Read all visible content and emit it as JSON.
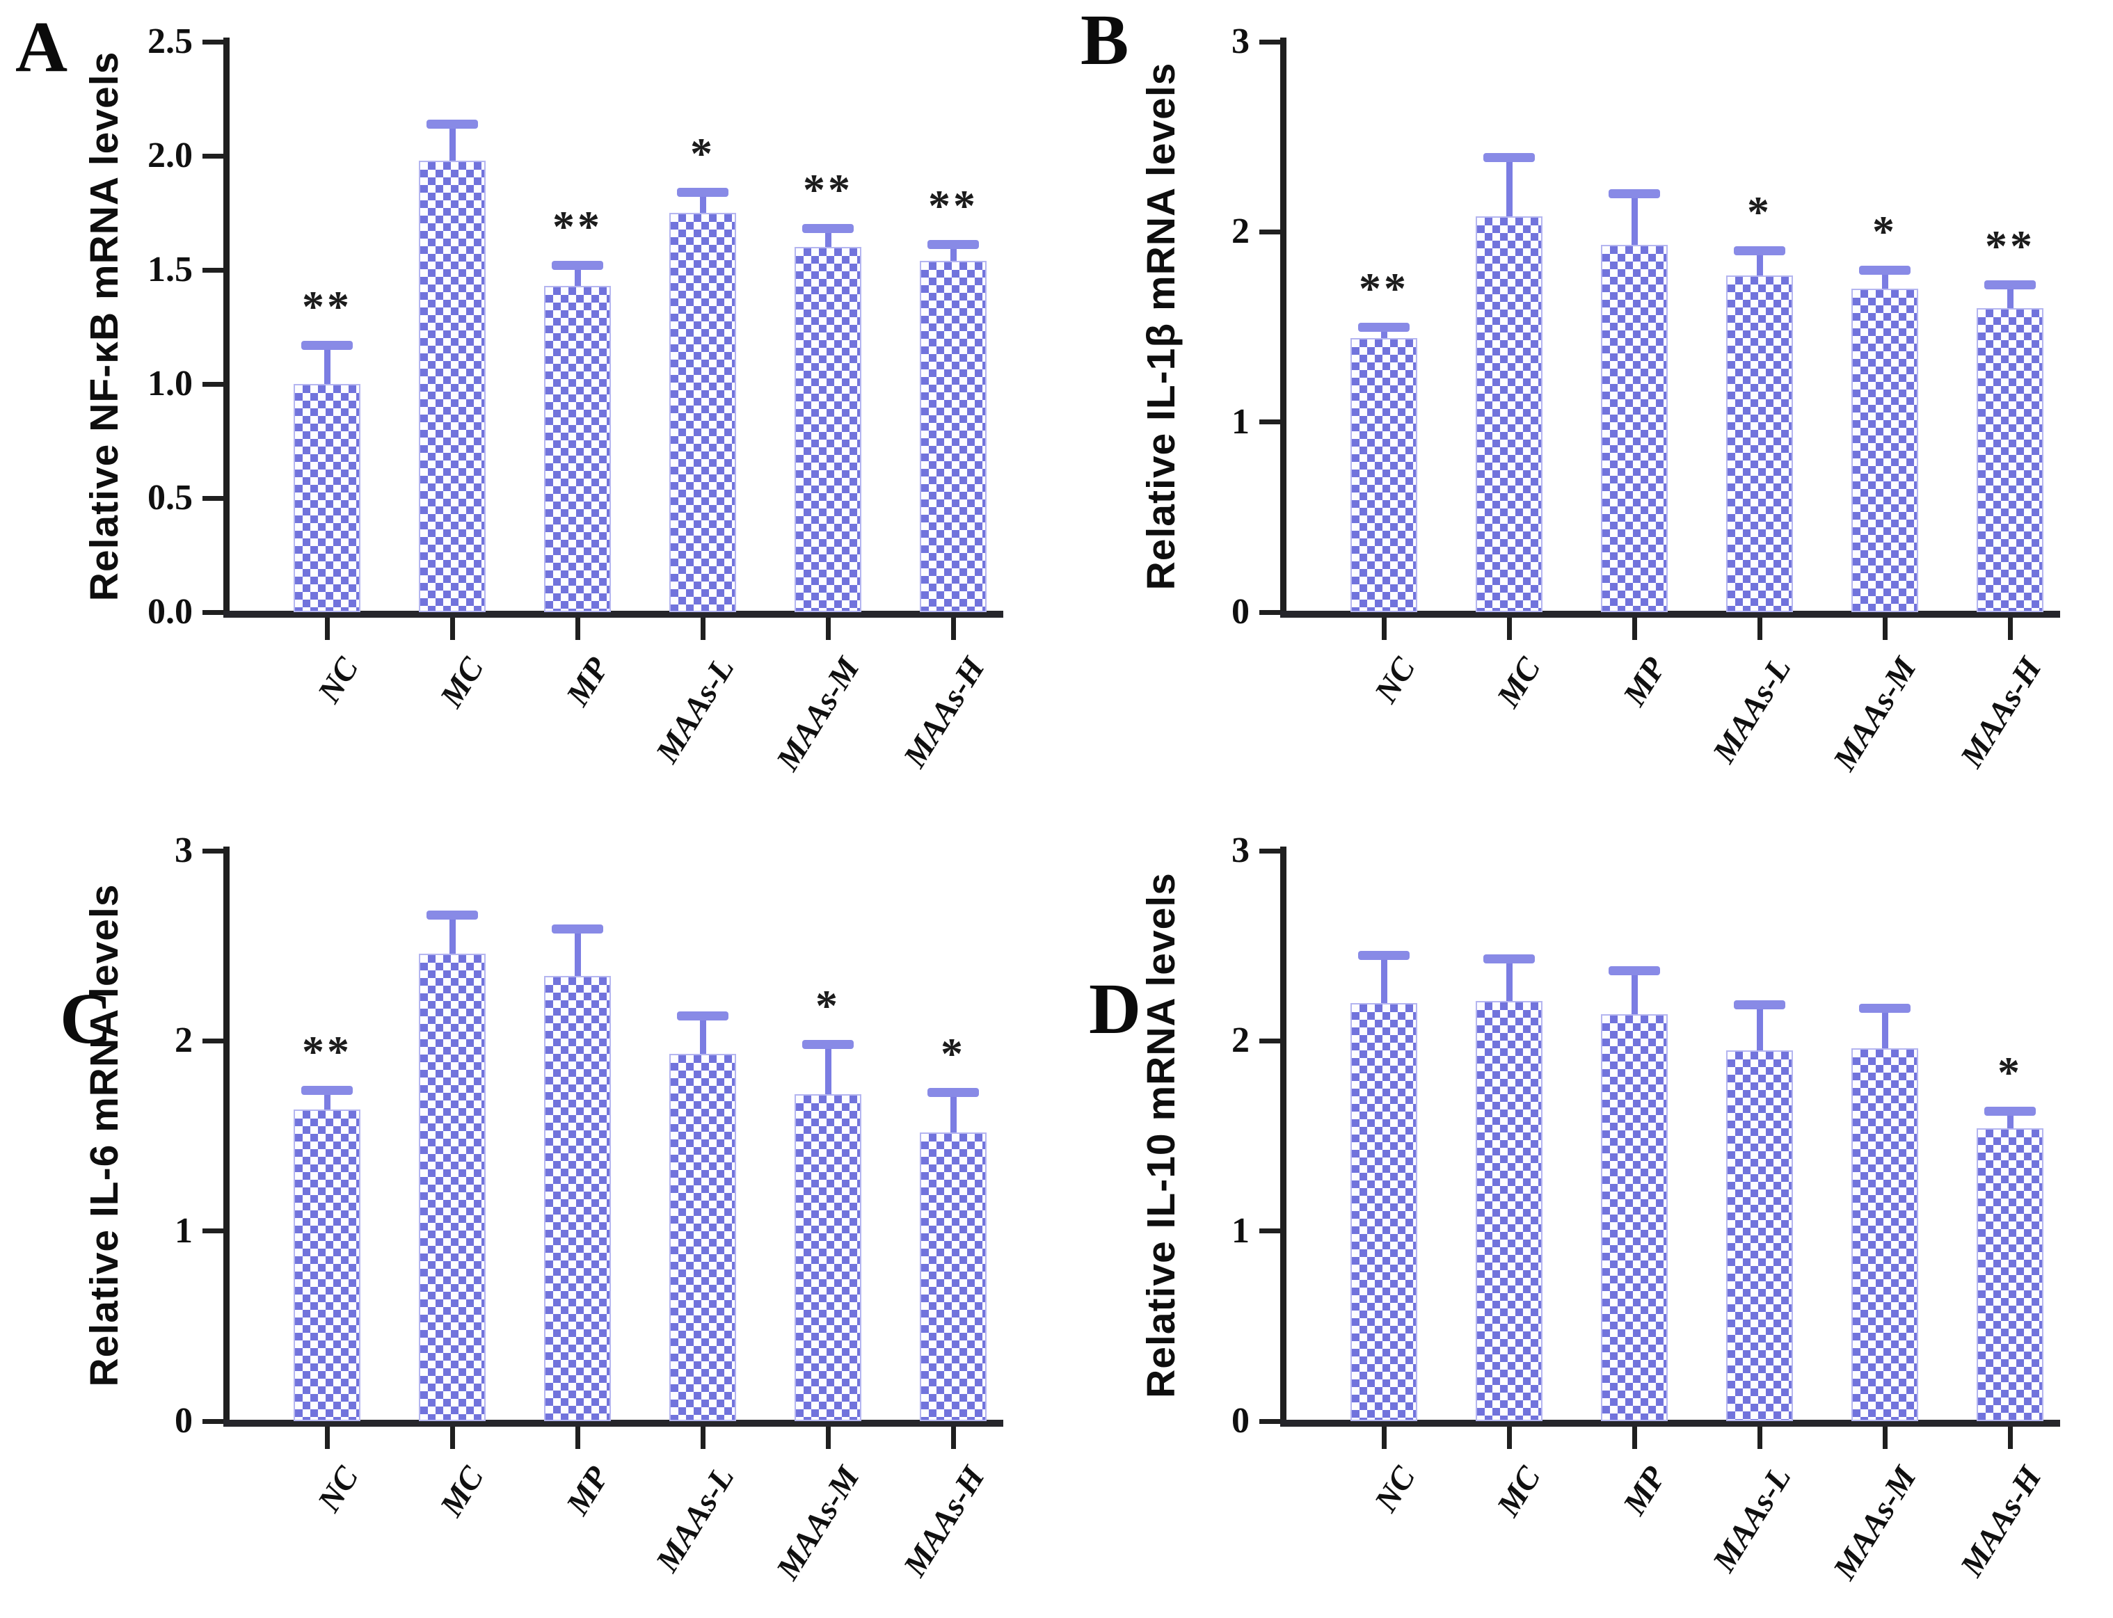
{
  "figure": {
    "background": "#ffffff",
    "bar_fill_color": "#7173dc",
    "bar_check_color": "#fdfdff",
    "bar_edge_color": "#b4b5f0",
    "error_bar_color": "#7b7de2",
    "axis_color": "#1f1f1f",
    "text_color": "#101010"
  },
  "chart_data": [
    {
      "type": "bar",
      "panel_label": "A",
      "ylabel": "Relative NF-κB mRNA levels",
      "xlabel": "",
      "ylim": [
        0,
        2.5
      ],
      "yticks": [
        0,
        0.5,
        1.0,
        1.5,
        2.0,
        2.5
      ],
      "ytick_labels": [
        "0.0",
        "0.5",
        "1.0",
        "1.5",
        "2.0",
        "2.5"
      ],
      "categories": [
        "NC",
        "MC",
        "MP",
        "MAAs-L",
        "MAAs-M",
        "MAAs-H"
      ],
      "values": [
        1.0,
        1.98,
        1.43,
        1.75,
        1.6,
        1.54
      ],
      "errors": [
        0.17,
        0.16,
        0.09,
        0.09,
        0.08,
        0.07
      ],
      "significance": [
        "**",
        "",
        "**",
        "*",
        "**",
        "**"
      ],
      "grid": false,
      "legend": null
    },
    {
      "type": "bar",
      "panel_label": "B",
      "ylabel": "Relative IL-1β mRNA levels",
      "xlabel": "",
      "ylim": [
        0,
        3
      ],
      "yticks": [
        0,
        1,
        2,
        3
      ],
      "ytick_labels": [
        "0",
        "1",
        "2",
        "3"
      ],
      "categories": [
        "NC",
        "MC",
        "MP",
        "MAAs-L",
        "MAAs-M",
        "MAAs-H"
      ],
      "values": [
        1.44,
        2.08,
        1.93,
        1.77,
        1.7,
        1.6
      ],
      "errors": [
        0.06,
        0.31,
        0.27,
        0.13,
        0.1,
        0.12
      ],
      "significance": [
        "**",
        "",
        "",
        "*",
        "*",
        "**"
      ],
      "grid": false,
      "legend": null
    },
    {
      "type": "bar",
      "panel_label": "C",
      "ylabel": "Relative IL-6 mRNA levels",
      "xlabel": "",
      "ylim": [
        0,
        3
      ],
      "yticks": [
        0,
        1,
        2,
        3
      ],
      "ytick_labels": [
        "0",
        "1",
        "2",
        "3"
      ],
      "categories": [
        "NC",
        "MC",
        "MP",
        "MAAs-L",
        "MAAs-M",
        "MAAs-H"
      ],
      "values": [
        1.64,
        2.46,
        2.34,
        1.93,
        1.72,
        1.52
      ],
      "errors": [
        0.1,
        0.2,
        0.25,
        0.2,
        0.26,
        0.21
      ],
      "significance": [
        "**",
        "",
        "",
        "",
        "*",
        "*"
      ],
      "grid": false,
      "legend": null
    },
    {
      "type": "bar",
      "panel_label": "D",
      "ylabel": "Relative IL-10 mRNA levels",
      "xlabel": "",
      "ylim": [
        0,
        3
      ],
      "yticks": [
        0,
        1,
        2,
        3
      ],
      "ytick_labels": [
        "0",
        "1",
        "2",
        "3"
      ],
      "categories": [
        "NC",
        "MC",
        "MP",
        "MAAs-L",
        "MAAs-M",
        "MAAs-H"
      ],
      "values": [
        2.2,
        2.21,
        2.14,
        1.95,
        1.96,
        1.54
      ],
      "errors": [
        0.25,
        0.22,
        0.23,
        0.24,
        0.21,
        0.09
      ],
      "significance": [
        "",
        "",
        "",
        "",
        "",
        "*"
      ],
      "grid": false,
      "legend": null
    }
  ]
}
